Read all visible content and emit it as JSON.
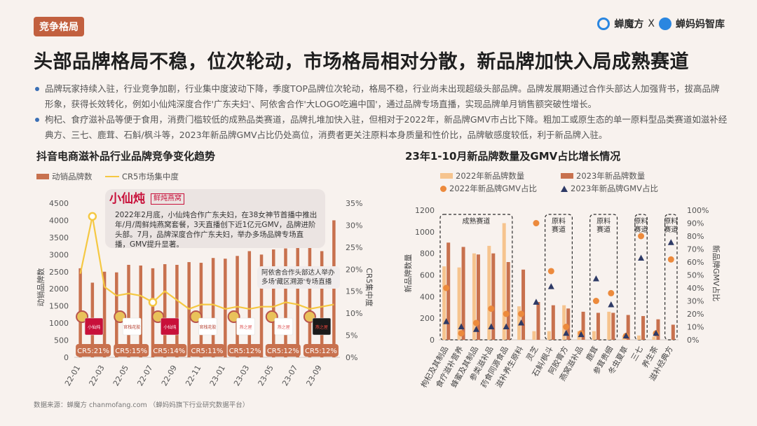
{
  "header": {
    "tag": "竞争格局",
    "brand_left": "蝉魔方",
    "brand_sep": "X",
    "brand_right": "蝉妈妈智库"
  },
  "title": "头部品牌格局不稳，位次轮动，市场格局相对分散，新品牌加快入局成熟赛道",
  "bullets": [
    "品牌玩家持续入驻，行业竞争加剧，行业集中度波动下降，季度TOP品牌位次轮动，格局不稳，行业尚未出现超级头部品牌。品牌发展期通过合作头部达人加强背书，拔高品牌形象，获得长效转化，例如小仙炖深度合作'广东夫妇'、阿依舍合作'大LOGO吃遍中国'，通过品牌专场直播，实现品牌单月销售额突破性增长。",
    "枸杞、食疗滋补品等便于食用，消费门槛较低的成熟品类赛道，品牌扎堆加快入驻，但相对于2022年，新品牌GMV市占比下降。粗加工或原生态的单一原料型品类赛道如滋补经典方、三七、鹿茸、石斛/枫斗等，2023年新品牌GMV占比仍处高位，消费者更关注原料本身质量和性价比，品牌敏感度较低，利于新品牌入驻。"
  ],
  "left_chart": {
    "title": "抖音电商滋补品行业品牌竞争变化趋势",
    "legend_bar": "动销品牌数",
    "legend_line": "CR5市场集中度",
    "y_left_label": "动销品牌数",
    "y_right_label": "CR5集中度",
    "callout_brand": "小仙炖",
    "callout_sub": "鲜炖燕窝",
    "callout_text": "2022年2月底，小仙炖合作广东夫妇，在38女神节首播中推出年/月/周鲜炖燕窝套餐，3天直播创下近1亿元GMV，品牌进阶头部。7月，品牌深度合作广东夫妇，举办多场品牌专场直播，GMV提升显著。",
    "callout2_text": "阿依舍合作头部达人举办多场'藏区溯源'专场直播",
    "cr5_labels": [
      "CR5:21%",
      "CR5:15%",
      "CR5:14%",
      "CR5:11%",
      "CR5:12%",
      "CR5:12%",
      "CR5:12%"
    ],
    "logo_texts": [
      "小仙炖",
      "官栈花胶",
      "小仙炖",
      "官栈花胶",
      "燕之屋",
      "燕之屋",
      "燕之屋"
    ]
  },
  "right_chart": {
    "title": "23年1-10月新品牌数量及GMV占比增长情况",
    "legend": {
      "bar22": "2022年新品牌数量",
      "bar23": "2023年新品牌数量",
      "dot22": "2022年新品牌GMV占比",
      "tri23": "2023年新品牌GMV占比"
    },
    "y_left_label": "新品牌数量",
    "y_right_label": "新品牌GMV占比",
    "box_labels": [
      "成熟赛道",
      "原料赛道",
      "原料赛道",
      "原料赛道",
      "原料赛道"
    ]
  },
  "chart_data": [
    {
      "type": "bar",
      "title": "抖音电商滋补品行业品牌竞争变化趋势",
      "ylabel": "动销品牌数",
      "y2label": "CR5集中度",
      "ylim": [
        0,
        4500
      ],
      "y2lim": [
        0,
        35
      ],
      "x_tick_labels": [
        "22-01",
        "22-03",
        "22-05",
        "22-07",
        "22-09",
        "22-11",
        "23-01",
        "23-03",
        "23-05",
        "23-07",
        "23-09"
      ],
      "x": [
        "22-01",
        "22-02",
        "22-03",
        "22-04",
        "22-05",
        "22-06",
        "22-07",
        "22-08",
        "22-09",
        "22-10",
        "22-11",
        "22-12",
        "23-01",
        "23-02",
        "23-03",
        "23-04",
        "23-05",
        "23-06",
        "23-07",
        "23-08",
        "23-09",
        "23-10"
      ],
      "series": [
        {
          "name": "动销品牌数",
          "axis": "left",
          "values": [
            2600,
            2180,
            2500,
            2480,
            2700,
            2680,
            2600,
            2720,
            2700,
            2780,
            2760,
            2900,
            2880,
            2960,
            3100,
            3000,
            3150,
            3180,
            3200,
            3250,
            3100,
            4000
          ]
        },
        {
          "name": "CR5市场集中度",
          "axis": "right",
          "values": [
            19,
            32,
            16,
            14,
            14.5,
            14,
            12.5,
            15,
            13,
            11,
            12,
            12,
            11,
            11.5,
            11,
            11.5,
            11.5,
            12.5,
            12,
            11,
            11.5,
            12
          ]
        }
      ]
    },
    {
      "type": "bar",
      "title": "23年1-10月新品牌数量及GMV占比增长情况",
      "ylabel": "新品牌数量",
      "y2label": "新品牌GMV占比",
      "ylim": [
        0,
        1200
      ],
      "y2lim": [
        0,
        100
      ],
      "categories": [
        "枸杞及其制品",
        "食疗滋补营养",
        "蜂蜜及其制品",
        "参类滋补品",
        "药食同源食品",
        "滋补养生原料",
        "灵芝",
        "石斛/枫斗",
        "阿胶膏方",
        "燕窝滋补品",
        "鹿茸",
        "参茸贵细",
        "冬虫夏草",
        "三七",
        "养生茶",
        "滋补经典方"
      ],
      "series": [
        {
          "name": "2022年新品牌数量",
          "axis": "left",
          "values": [
            680,
            670,
            800,
            870,
            1080,
            310,
            80,
            80,
            320,
            80,
            80,
            260,
            40,
            40,
            30,
            0
          ]
        },
        {
          "name": "2023年新品牌数量",
          "axis": "left",
          "values": [
            900,
            860,
            790,
            800,
            720,
            650,
            350,
            320,
            290,
            260,
            250,
            250,
            230,
            220,
            190,
            140
          ]
        },
        {
          "name": "2022年新品牌GMV占比",
          "axis": "right",
          "values": [
            40,
            5,
            13,
            24,
            20,
            20,
            90,
            53,
            10,
            5,
            30,
            36,
            3,
            80,
            5,
            62
          ]
        },
        {
          "name": "2023年新品牌GMV占比",
          "axis": "right",
          "values": [
            14,
            10,
            8,
            10,
            10,
            13,
            29,
            41,
            5,
            4,
            47,
            27,
            3,
            63,
            5,
            75
          ]
        }
      ]
    }
  ]
}
